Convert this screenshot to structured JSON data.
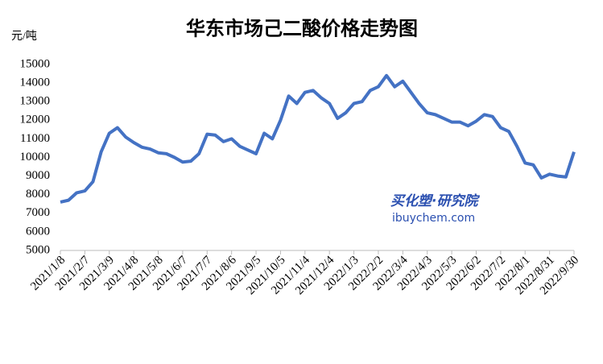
{
  "chart_data": {
    "type": "line",
    "title": "华东市场己二酸价格走势图",
    "y_label": "元/吨",
    "annotations": [
      "买化塑·研究院",
      "ibuychem.com"
    ],
    "categories": [
      "2021/1/8",
      null,
      null,
      "2021/2/7",
      null,
      null,
      "2021/3/9",
      null,
      null,
      "2021/4/8",
      null,
      null,
      "2021/5/8",
      null,
      null,
      "2021/6/7",
      null,
      null,
      "2021/7/7",
      null,
      null,
      "2021/8/6",
      null,
      null,
      "2021/9/5",
      null,
      null,
      "2021/10/5",
      null,
      null,
      "2021/11/4",
      null,
      null,
      "2021/12/4",
      null,
      null,
      "2022/1/3",
      null,
      null,
      "2022/2/2",
      null,
      null,
      "2022/3/4",
      null,
      null,
      "2022/4/3",
      null,
      null,
      "2022/5/3",
      null,
      null,
      "2022/6/2",
      null,
      null,
      "2022/7/2",
      null,
      null,
      "2022/8/1",
      null,
      null,
      "2022/8/31",
      null,
      null,
      "2022/9/30"
    ],
    "series": [
      {
        "name": "华东市场己二酸价格",
        "color": "#4472c4",
        "values": [
          7600,
          7700,
          8100,
          8200,
          8700,
          10300,
          11300,
          11600,
          11100,
          10800,
          10550,
          10450,
          10250,
          10200,
          10000,
          9750,
          9800,
          10200,
          11250,
          11200,
          10850,
          11000,
          10600,
          10400,
          10200,
          11300,
          11000,
          12000,
          13300,
          12900,
          13500,
          13600,
          13200,
          12900,
          12100,
          12400,
          12900,
          13000,
          13600,
          13800,
          14400,
          13800,
          14100,
          13500,
          12900,
          12400,
          12300,
          12100,
          11900,
          11900,
          11700,
          11950,
          12300,
          12200,
          11600,
          11400,
          10600,
          9700,
          9600,
          8900,
          9100,
          9000,
          8950,
          10300
        ]
      }
    ],
    "ylim": [
      5000,
      15000
    ],
    "yticks": [
      5000,
      6000,
      7000,
      8000,
      9000,
      10000,
      11000,
      12000,
      13000,
      14000,
      15000
    ],
    "grid": false
  }
}
